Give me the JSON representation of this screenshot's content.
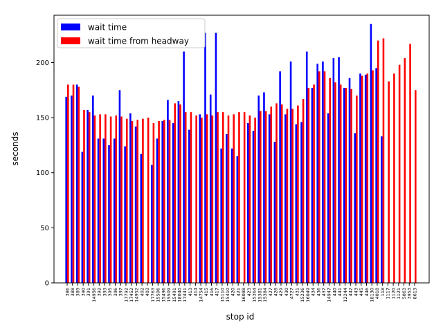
{
  "chart_data": {
    "type": "bar",
    "xlabel": "stop id",
    "ylabel": "seconds",
    "categories": [
      "386",
      "388",
      "389",
      "390",
      "391",
      "14956",
      "392",
      "393",
      "395",
      "396",
      "397",
      "17792",
      "17452",
      "14952",
      "402",
      "403",
      "17763",
      "15506",
      "15496",
      "15509",
      "15491",
      "18040",
      "17441",
      "413",
      "414",
      "14754",
      "415",
      "416",
      "417",
      "15110",
      "15410",
      "420",
      "421",
      "16088",
      "423",
      "15364",
      "15381",
      "15384",
      "427",
      "428",
      "429",
      "430",
      "4727",
      "431",
      "15236",
      "16049",
      "434",
      "436",
      "437",
      "14947",
      "440",
      "441",
      "12244",
      "442",
      "443",
      "445",
      "446",
      "18130",
      "4018",
      "118",
      "1117",
      "1120",
      "1121",
      "5063",
      "3953",
      "8613"
    ],
    "series": [
      {
        "name": "wait time",
        "color": "#0000ff",
        "values": [
          169,
          170,
          180,
          119,
          157,
          170,
          131,
          131,
          125,
          131,
          175,
          124,
          154,
          142,
          117,
          0,
          107,
          131,
          147,
          166,
          145,
          165,
          210,
          139,
          0,
          153,
          227,
          171,
          227,
          122,
          135,
          122,
          115,
          0,
          145,
          138,
          170,
          173,
          153,
          128,
          192,
          153,
          201,
          144,
          146,
          210,
          177,
          199,
          201,
          154,
          204,
          205,
          177,
          186,
          136,
          190,
          189,
          235,
          195,
          133,
          0,
          0,
          0,
          0,
          0,
          0
        ]
      },
      {
        "name": "wait time from headway",
        "color": "#ff0000",
        "values": [
          180,
          180,
          178,
          157,
          155,
          152,
          153,
          153,
          151,
          152,
          151,
          149,
          147,
          148,
          149,
          150,
          145,
          147,
          148,
          148,
          163,
          162,
          155,
          155,
          152,
          150,
          153,
          152,
          155,
          155,
          152,
          153,
          155,
          155,
          152,
          150,
          156,
          156,
          160,
          163,
          162,
          158,
          158,
          161,
          167,
          177,
          180,
          192,
          192,
          186,
          182,
          180,
          177,
          176,
          170,
          188,
          190,
          193,
          220,
          222,
          183,
          190,
          198,
          204,
          217,
          175
        ]
      }
    ],
    "ylim": [
      0,
      243
    ],
    "yticks": [
      0,
      50,
      100,
      150,
      200
    ],
    "legend": "upper left"
  }
}
